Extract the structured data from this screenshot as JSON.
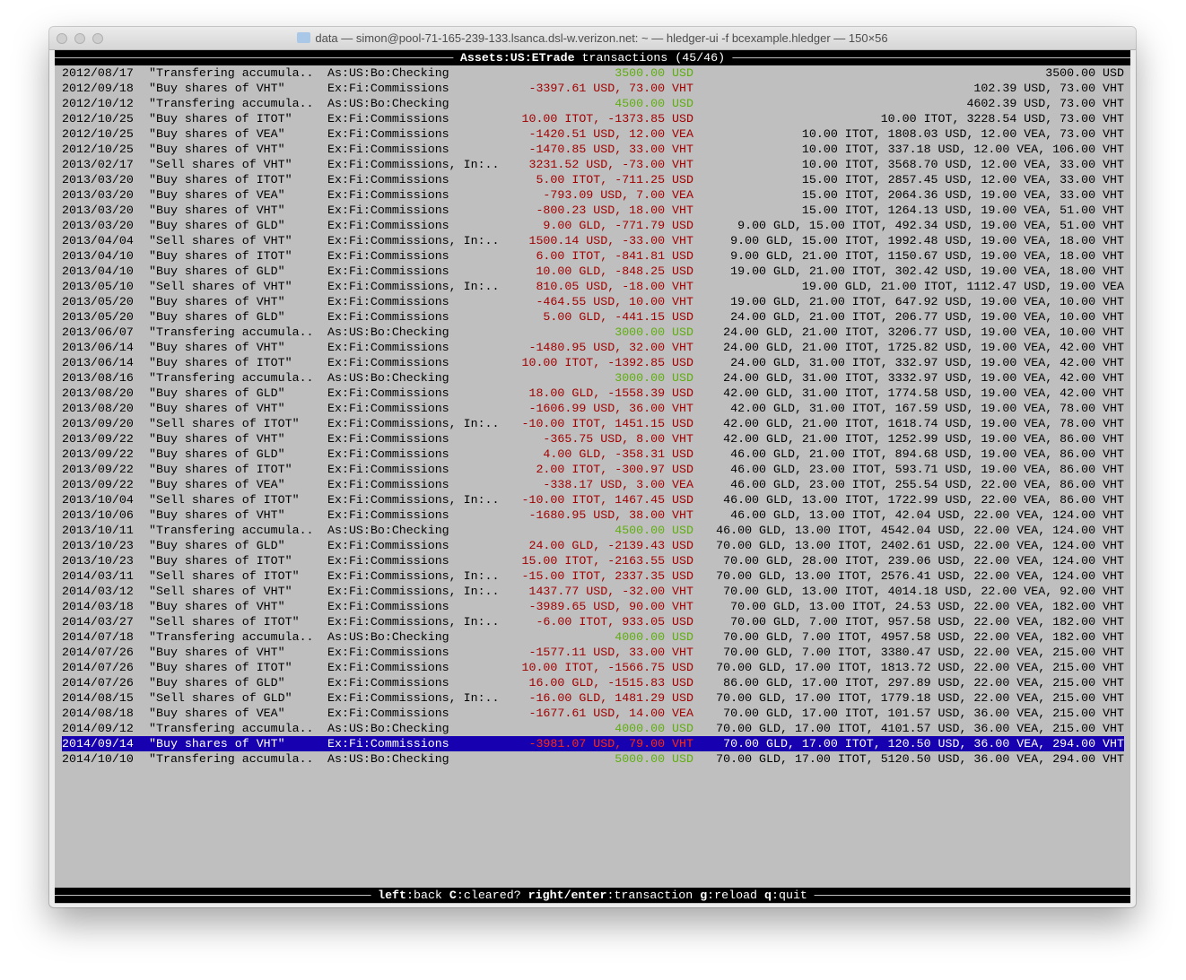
{
  "window": {
    "title": "data — simon@pool-71-165-239-133.lsanca.dsl-w.verizon.net: ~ — hledger-ui -f bcexample.hledger — 150×56"
  },
  "header": {
    "account": "Assets:US:ETrade",
    "suffix": " transactions (45/46)"
  },
  "colors": {
    "background": "#bfbfbf",
    "negative": "#a10000",
    "positive": "#5fae10",
    "selection": "#1600b0"
  },
  "rows": [
    [
      "2012/08/17",
      "\"Transfering accumula..",
      "As:US:Bo:Checking",
      "3500.00 USD",
      "3500.00 USD",
      "pos"
    ],
    [
      "2012/09/18",
      "\"Buy shares of VHT\"",
      "Ex:Fi:Commissions",
      "-3397.61 USD, 73.00 VHT",
      "102.39 USD, 73.00 VHT",
      "neg"
    ],
    [
      "2012/10/12",
      "\"Transfering accumula..",
      "As:US:Bo:Checking",
      "4500.00 USD",
      "4602.39 USD, 73.00 VHT",
      "pos"
    ],
    [
      "2012/10/25",
      "\"Buy shares of ITOT\"",
      "Ex:Fi:Commissions",
      "10.00 ITOT, -1373.85 USD",
      "10.00 ITOT, 3228.54 USD, 73.00 VHT",
      "neg"
    ],
    [
      "2012/10/25",
      "\"Buy shares of VEA\"",
      "Ex:Fi:Commissions",
      "-1420.51 USD, 12.00 VEA",
      "10.00 ITOT, 1808.03 USD, 12.00 VEA, 73.00 VHT",
      "neg"
    ],
    [
      "2012/10/25",
      "\"Buy shares of VHT\"",
      "Ex:Fi:Commissions",
      "-1470.85 USD, 33.00 VHT",
      "10.00 ITOT, 337.18 USD, 12.00 VEA, 106.00 VHT",
      "neg"
    ],
    [
      "2013/02/17",
      "\"Sell shares of VHT\"",
      "Ex:Fi:Commissions, In:..",
      "3231.52 USD, -73.00 VHT",
      "10.00 ITOT, 3568.70 USD, 12.00 VEA, 33.00 VHT",
      "neg"
    ],
    [
      "2013/03/20",
      "\"Buy shares of ITOT\"",
      "Ex:Fi:Commissions",
      "5.00 ITOT, -711.25 USD",
      "15.00 ITOT, 2857.45 USD, 12.00 VEA, 33.00 VHT",
      "neg"
    ],
    [
      "2013/03/20",
      "\"Buy shares of VEA\"",
      "Ex:Fi:Commissions",
      "-793.09 USD, 7.00 VEA",
      "15.00 ITOT, 2064.36 USD, 19.00 VEA, 33.00 VHT",
      "neg"
    ],
    [
      "2013/03/20",
      "\"Buy shares of VHT\"",
      "Ex:Fi:Commissions",
      "-800.23 USD, 18.00 VHT",
      "15.00 ITOT, 1264.13 USD, 19.00 VEA, 51.00 VHT",
      "neg"
    ],
    [
      "2013/03/20",
      "\"Buy shares of GLD\"",
      "Ex:Fi:Commissions",
      "9.00 GLD, -771.79 USD",
      "9.00 GLD, 15.00 ITOT, 492.34 USD, 19.00 VEA, 51.00 VHT",
      "neg"
    ],
    [
      "2013/04/04",
      "\"Sell shares of VHT\"",
      "Ex:Fi:Commissions, In:..",
      "1500.14 USD, -33.00 VHT",
      "9.00 GLD, 15.00 ITOT, 1992.48 USD, 19.00 VEA, 18.00 VHT",
      "neg"
    ],
    [
      "2013/04/10",
      "\"Buy shares of ITOT\"",
      "Ex:Fi:Commissions",
      "6.00 ITOT, -841.81 USD",
      "9.00 GLD, 21.00 ITOT, 1150.67 USD, 19.00 VEA, 18.00 VHT",
      "neg"
    ],
    [
      "2013/04/10",
      "\"Buy shares of GLD\"",
      "Ex:Fi:Commissions",
      "10.00 GLD, -848.25 USD",
      "19.00 GLD, 21.00 ITOT, 302.42 USD, 19.00 VEA, 18.00 VHT",
      "neg"
    ],
    [
      "2013/05/10",
      "\"Sell shares of VHT\"",
      "Ex:Fi:Commissions, In:..",
      "810.05 USD, -18.00 VHT",
      "19.00 GLD, 21.00 ITOT, 1112.47 USD, 19.00 VEA",
      "neg"
    ],
    [
      "2013/05/20",
      "\"Buy shares of VHT\"",
      "Ex:Fi:Commissions",
      "-464.55 USD, 10.00 VHT",
      "19.00 GLD, 21.00 ITOT, 647.92 USD, 19.00 VEA, 10.00 VHT",
      "neg"
    ],
    [
      "2013/05/20",
      "\"Buy shares of GLD\"",
      "Ex:Fi:Commissions",
      "5.00 GLD, -441.15 USD",
      "24.00 GLD, 21.00 ITOT, 206.77 USD, 19.00 VEA, 10.00 VHT",
      "neg"
    ],
    [
      "2013/06/07",
      "\"Transfering accumula..",
      "As:US:Bo:Checking",
      "3000.00 USD",
      "24.00 GLD, 21.00 ITOT, 3206.77 USD, 19.00 VEA, 10.00 VHT",
      "pos"
    ],
    [
      "2013/06/14",
      "\"Buy shares of VHT\"",
      "Ex:Fi:Commissions",
      "-1480.95 USD, 32.00 VHT",
      "24.00 GLD, 21.00 ITOT, 1725.82 USD, 19.00 VEA, 42.00 VHT",
      "neg"
    ],
    [
      "2013/06/14",
      "\"Buy shares of ITOT\"",
      "Ex:Fi:Commissions",
      "10.00 ITOT, -1392.85 USD",
      "24.00 GLD, 31.00 ITOT, 332.97 USD, 19.00 VEA, 42.00 VHT",
      "neg"
    ],
    [
      "2013/08/16",
      "\"Transfering accumula..",
      "As:US:Bo:Checking",
      "3000.00 USD",
      "24.00 GLD, 31.00 ITOT, 3332.97 USD, 19.00 VEA, 42.00 VHT",
      "pos"
    ],
    [
      "2013/08/20",
      "\"Buy shares of GLD\"",
      "Ex:Fi:Commissions",
      "18.00 GLD, -1558.39 USD",
      "42.00 GLD, 31.00 ITOT, 1774.58 USD, 19.00 VEA, 42.00 VHT",
      "neg"
    ],
    [
      "2013/08/20",
      "\"Buy shares of VHT\"",
      "Ex:Fi:Commissions",
      "-1606.99 USD, 36.00 VHT",
      "42.00 GLD, 31.00 ITOT, 167.59 USD, 19.00 VEA, 78.00 VHT",
      "neg"
    ],
    [
      "2013/09/20",
      "\"Sell shares of ITOT\"",
      "Ex:Fi:Commissions, In:..",
      "-10.00 ITOT, 1451.15 USD",
      "42.00 GLD, 21.00 ITOT, 1618.74 USD, 19.00 VEA, 78.00 VHT",
      "neg"
    ],
    [
      "2013/09/22",
      "\"Buy shares of VHT\"",
      "Ex:Fi:Commissions",
      "-365.75 USD, 8.00 VHT",
      "42.00 GLD, 21.00 ITOT, 1252.99 USD, 19.00 VEA, 86.00 VHT",
      "neg"
    ],
    [
      "2013/09/22",
      "\"Buy shares of GLD\"",
      "Ex:Fi:Commissions",
      "4.00 GLD, -358.31 USD",
      "46.00 GLD, 21.00 ITOT, 894.68 USD, 19.00 VEA, 86.00 VHT",
      "neg"
    ],
    [
      "2013/09/22",
      "\"Buy shares of ITOT\"",
      "Ex:Fi:Commissions",
      "2.00 ITOT, -300.97 USD",
      "46.00 GLD, 23.00 ITOT, 593.71 USD, 19.00 VEA, 86.00 VHT",
      "neg"
    ],
    [
      "2013/09/22",
      "\"Buy shares of VEA\"",
      "Ex:Fi:Commissions",
      "-338.17 USD, 3.00 VEA",
      "46.00 GLD, 23.00 ITOT, 255.54 USD, 22.00 VEA, 86.00 VHT",
      "neg"
    ],
    [
      "2013/10/04",
      "\"Sell shares of ITOT\"",
      "Ex:Fi:Commissions, In:..",
      "-10.00 ITOT, 1467.45 USD",
      "46.00 GLD, 13.00 ITOT, 1722.99 USD, 22.00 VEA, 86.00 VHT",
      "neg"
    ],
    [
      "2013/10/06",
      "\"Buy shares of VHT\"",
      "Ex:Fi:Commissions",
      "-1680.95 USD, 38.00 VHT",
      "46.00 GLD, 13.00 ITOT, 42.04 USD, 22.00 VEA, 124.00 VHT",
      "neg"
    ],
    [
      "2013/10/11",
      "\"Transfering accumula..",
      "As:US:Bo:Checking",
      "4500.00 USD",
      "46.00 GLD, 13.00 ITOT, 4542.04 USD, 22.00 VEA, 124.00 VHT",
      "pos"
    ],
    [
      "2013/10/23",
      "\"Buy shares of GLD\"",
      "Ex:Fi:Commissions",
      "24.00 GLD, -2139.43 USD",
      "70.00 GLD, 13.00 ITOT, 2402.61 USD, 22.00 VEA, 124.00 VHT",
      "neg"
    ],
    [
      "2013/10/23",
      "\"Buy shares of ITOT\"",
      "Ex:Fi:Commissions",
      "15.00 ITOT, -2163.55 USD",
      "70.00 GLD, 28.00 ITOT, 239.06 USD, 22.00 VEA, 124.00 VHT",
      "neg"
    ],
    [
      "2014/03/11",
      "\"Sell shares of ITOT\"",
      "Ex:Fi:Commissions, In:..",
      "-15.00 ITOT, 2337.35 USD",
      "70.00 GLD, 13.00 ITOT, 2576.41 USD, 22.00 VEA, 124.00 VHT",
      "neg"
    ],
    [
      "2014/03/12",
      "\"Sell shares of VHT\"",
      "Ex:Fi:Commissions, In:..",
      "1437.77 USD, -32.00 VHT",
      "70.00 GLD, 13.00 ITOT, 4014.18 USD, 22.00 VEA, 92.00 VHT",
      "neg"
    ],
    [
      "2014/03/18",
      "\"Buy shares of VHT\"",
      "Ex:Fi:Commissions",
      "-3989.65 USD, 90.00 VHT",
      "70.00 GLD, 13.00 ITOT, 24.53 USD, 22.00 VEA, 182.00 VHT",
      "neg"
    ],
    [
      "2014/03/27",
      "\"Sell shares of ITOT\"",
      "Ex:Fi:Commissions, In:..",
      "-6.00 ITOT, 933.05 USD",
      "70.00 GLD, 7.00 ITOT, 957.58 USD, 22.00 VEA, 182.00 VHT",
      "neg"
    ],
    [
      "2014/07/18",
      "\"Transfering accumula..",
      "As:US:Bo:Checking",
      "4000.00 USD",
      "70.00 GLD, 7.00 ITOT, 4957.58 USD, 22.00 VEA, 182.00 VHT",
      "pos"
    ],
    [
      "2014/07/26",
      "\"Buy shares of VHT\"",
      "Ex:Fi:Commissions",
      "-1577.11 USD, 33.00 VHT",
      "70.00 GLD, 7.00 ITOT, 3380.47 USD, 22.00 VEA, 215.00 VHT",
      "neg"
    ],
    [
      "2014/07/26",
      "\"Buy shares of ITOT\"",
      "Ex:Fi:Commissions",
      "10.00 ITOT, -1566.75 USD",
      "70.00 GLD, 17.00 ITOT, 1813.72 USD, 22.00 VEA, 215.00 VHT",
      "neg"
    ],
    [
      "2014/07/26",
      "\"Buy shares of GLD\"",
      "Ex:Fi:Commissions",
      "16.00 GLD, -1515.83 USD",
      "86.00 GLD, 17.00 ITOT, 297.89 USD, 22.00 VEA, 215.00 VHT",
      "neg"
    ],
    [
      "2014/08/15",
      "\"Sell shares of GLD\"",
      "Ex:Fi:Commissions, In:..",
      "-16.00 GLD, 1481.29 USD",
      "70.00 GLD, 17.00 ITOT, 1779.18 USD, 22.00 VEA, 215.00 VHT",
      "neg"
    ],
    [
      "2014/08/18",
      "\"Buy shares of VEA\"",
      "Ex:Fi:Commissions",
      "-1677.61 USD, 14.00 VEA",
      "70.00 GLD, 17.00 ITOT, 101.57 USD, 36.00 VEA, 215.00 VHT",
      "neg"
    ],
    [
      "2014/09/12",
      "\"Transfering accumula..",
      "As:US:Bo:Checking",
      "4000.00 USD",
      "70.00 GLD, 17.00 ITOT, 4101.57 USD, 36.00 VEA, 215.00 VHT",
      "pos"
    ],
    [
      "2014/09/14",
      "\"Buy shares of VHT\"",
      "Ex:Fi:Commissions",
      "-3981.07 USD, 79.00 VHT",
      "70.00 GLD, 17.00 ITOT, 120.50 USD, 36.00 VEA, 294.00 VHT",
      "neg"
    ],
    [
      "2014/10/10",
      "\"Transfering accumula..",
      "As:US:Bo:Checking",
      "5000.00 USD",
      "70.00 GLD, 17.00 ITOT, 5120.50 USD, 36.00 VEA, 294.00 VHT",
      "pos"
    ]
  ],
  "selected_index": 44,
  "footer": {
    "keys": [
      {
        "key": "left",
        "desc": ":back "
      },
      {
        "key": "C",
        "desc": ":cleared? "
      },
      {
        "key": "right/enter",
        "desc": ":transaction "
      },
      {
        "key": "g",
        "desc": ":reload "
      },
      {
        "key": "q",
        "desc": ":quit"
      }
    ]
  }
}
